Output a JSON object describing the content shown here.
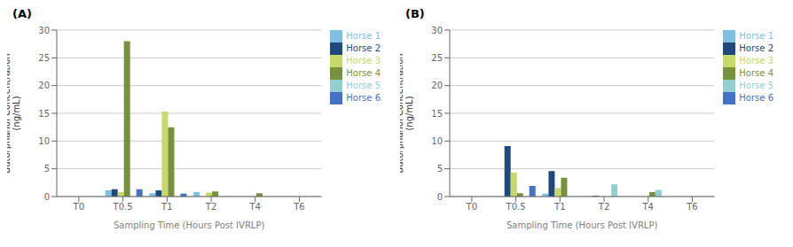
{
  "chart_data": [
    {
      "type": "bar",
      "title": "(A)",
      "categories": [
        "T0",
        "T0.5",
        "T1",
        "T2",
        "T4",
        "T6"
      ],
      "series": [
        {
          "name": "Horse 1",
          "color": "#7fbfdf",
          "values": [
            0,
            1.1,
            0.6,
            0.8,
            0,
            0
          ]
        },
        {
          "name": "Horse 2",
          "color": "#1f497d",
          "values": [
            0,
            1.3,
            1.1,
            0,
            0,
            0
          ]
        },
        {
          "name": "Horse 3",
          "color": "#c6d96a",
          "values": [
            0,
            0.8,
            15.3,
            0.7,
            0,
            0
          ]
        },
        {
          "name": "Horse 4",
          "color": "#76923c",
          "values": [
            0,
            28.0,
            12.5,
            0.9,
            0.6,
            0
          ]
        },
        {
          "name": "Horse 5",
          "color": "#92d0d0",
          "values": [
            0,
            0,
            0,
            0,
            0,
            0
          ]
        },
        {
          "name": "Horse 6",
          "color": "#4472c4",
          "values": [
            0,
            1.3,
            0.5,
            0,
            0,
            0
          ]
        }
      ],
      "ylim": [
        0,
        30
      ],
      "yticks": [
        0,
        5,
        10,
        15,
        20,
        25,
        30
      ],
      "ylabel": "Butorphanol Concentration\n(ng/mL)",
      "xlabel": "Sampling Time (Hours Post IVRLP)",
      "grid": true,
      "legend": "right"
    },
    {
      "type": "bar",
      "title": "(B)",
      "categories": [
        "T0",
        "T0.5",
        "T1",
        "T2",
        "T4",
        "T6"
      ],
      "series": [
        {
          "name": "Horse 1",
          "color": "#7fbfdf",
          "values": [
            0,
            0,
            0.5,
            0,
            0,
            0
          ]
        },
        {
          "name": "Horse 2",
          "color": "#1f497d",
          "values": [
            0,
            9.1,
            4.6,
            0.1,
            0,
            0
          ]
        },
        {
          "name": "Horse 3",
          "color": "#c6d96a",
          "values": [
            0,
            4.3,
            1.5,
            0,
            0,
            0
          ]
        },
        {
          "name": "Horse 4",
          "color": "#76923c",
          "values": [
            0,
            0.6,
            3.4,
            0,
            0.8,
            0
          ]
        },
        {
          "name": "Horse 5",
          "color": "#92d0d0",
          "values": [
            0,
            0,
            0,
            2.2,
            1.2,
            0
          ]
        },
        {
          "name": "Horse 6",
          "color": "#4472c4",
          "values": [
            0,
            1.9,
            0,
            0,
            0,
            0
          ]
        }
      ],
      "ylim": [
        0,
        30
      ],
      "yticks": [
        0,
        5,
        10,
        15,
        20,
        25,
        30
      ],
      "ylabel": "Butorphanol Concentration\n(ng/mL)",
      "xlabel": "Sampling Time (Hours Post IVRLP)",
      "grid": true,
      "legend": "right"
    }
  ]
}
